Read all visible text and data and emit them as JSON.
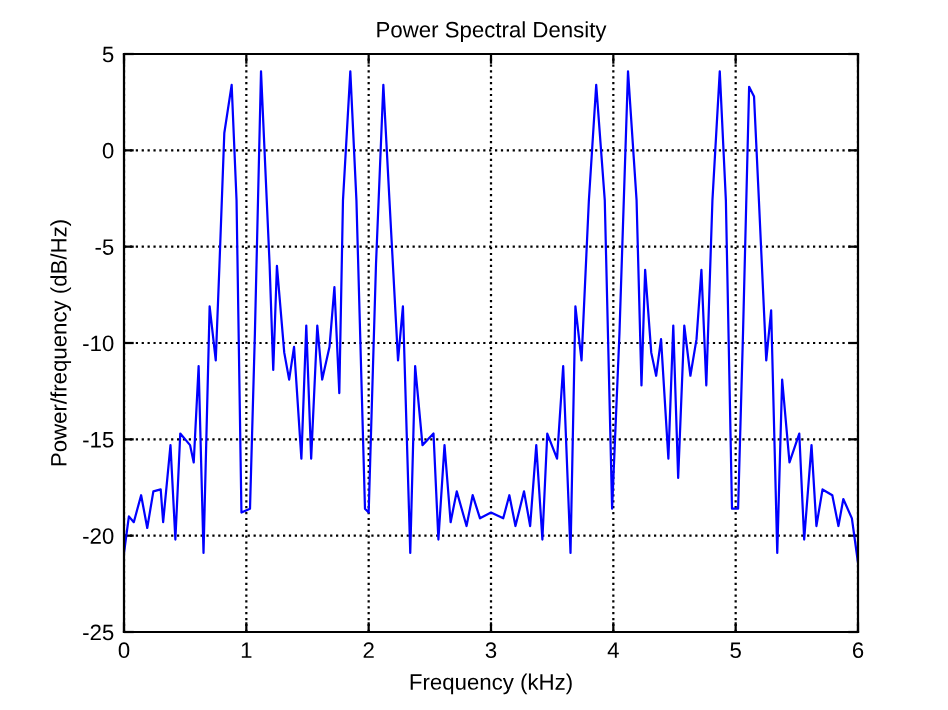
{
  "chart_data": {
    "type": "line",
    "title": "Power Spectral Density",
    "xlabel": "Frequency (kHz)",
    "ylabel": "Power/frequency (dB/Hz)",
    "xlim": [
      0,
      6
    ],
    "ylim": [
      -25,
      5
    ],
    "xticks": [
      0,
      1,
      2,
      3,
      4,
      5,
      6
    ],
    "yticks": [
      -25,
      -20,
      -15,
      -10,
      -5,
      0,
      5
    ],
    "grid": true,
    "marker": "none",
    "line_style": "solid",
    "series": [
      {
        "color": "#0000ff",
        "x": [
          0,
          0.04,
          0.08,
          0.14,
          0.19,
          0.24,
          0.3,
          0.32,
          0.38,
          0.42,
          0.46,
          0.54,
          0.57,
          0.61,
          0.65,
          0.7,
          0.75,
          0.78,
          0.82,
          0.88,
          0.92,
          0.96,
          1.03,
          1.07,
          1.12,
          1.19,
          1.22,
          1.25,
          1.31,
          1.35,
          1.39,
          1.45,
          1.49,
          1.53,
          1.58,
          1.62,
          1.68,
          1.72,
          1.76,
          1.79,
          1.85,
          1.9,
          1.97,
          2.0,
          2.06,
          2.12,
          2.17,
          2.24,
          2.28,
          2.34,
          2.38,
          2.44,
          2.53,
          2.57,
          2.62,
          2.67,
          2.72,
          2.8,
          2.85,
          2.91,
          3.0,
          3.1,
          3.15,
          3.2,
          3.27,
          3.32,
          3.37,
          3.42,
          3.46,
          3.54,
          3.59,
          3.65,
          3.69,
          3.74,
          3.8,
          3.86,
          3.93,
          3.99,
          4.05,
          4.12,
          4.19,
          4.23,
          4.26,
          4.31,
          4.35,
          4.39,
          4.45,
          4.49,
          4.53,
          4.58,
          4.63,
          4.68,
          4.72,
          4.76,
          4.81,
          4.87,
          4.92,
          4.97,
          5.02,
          5.06,
          5.11,
          5.15,
          5.19,
          5.25,
          5.29,
          5.34,
          5.38,
          5.44,
          5.52,
          5.56,
          5.62,
          5.66,
          5.71,
          5.79,
          5.84,
          5.88,
          5.95,
          6.0
        ],
        "values": [
          -20.9,
          -19,
          -19.3,
          -17.9,
          -19.6,
          -17.7,
          -17.6,
          -19.3,
          -15.3,
          -20.2,
          -14.7,
          -15.3,
          -16.2,
          -11.2,
          -20.9,
          -8.1,
          -10.9,
          -6.0,
          0.9,
          3.4,
          -2.6,
          -18.8,
          -18.6,
          -9.5,
          4.1,
          -5.9,
          -11.4,
          -6.0,
          -10.5,
          -11.9,
          -10.2,
          -16.0,
          -9.1,
          -16.0,
          -9.1,
          -11.9,
          -10.2,
          -7.1,
          -12.6,
          -2.6,
          4.1,
          -2.6,
          -18.6,
          -18.8,
          -5.9,
          3.4,
          -2.6,
          -10.9,
          -8.1,
          -20.9,
          -11.2,
          -15.3,
          -14.7,
          -20.2,
          -15.3,
          -19.3,
          -17.7,
          -19.5,
          -17.9,
          -19.1,
          -18.8,
          -19.1,
          -17.9,
          -19.5,
          -17.7,
          -19.5,
          -15.3,
          -20.2,
          -14.7,
          -16.0,
          -11.2,
          -20.9,
          -8.1,
          -10.9,
          -2.6,
          3.4,
          -2.6,
          -18.6,
          -9.5,
          4.1,
          -2.6,
          -12.2,
          -6.2,
          -10.5,
          -11.7,
          -9.8,
          -16.0,
          -9.1,
          -17.0,
          -9.1,
          -11.7,
          -9.8,
          -6.2,
          -12.2,
          -2.6,
          4.1,
          -2.6,
          -18.6,
          -18.6,
          -9.5,
          3.3,
          2.8,
          -2.6,
          -10.9,
          -8.3,
          -20.9,
          -11.9,
          -16.2,
          -14.7,
          -20.2,
          -15.3,
          -19.5,
          -17.6,
          -17.9,
          -19.5,
          -18.1,
          -19.1,
          -21.4
        ]
      }
    ]
  }
}
